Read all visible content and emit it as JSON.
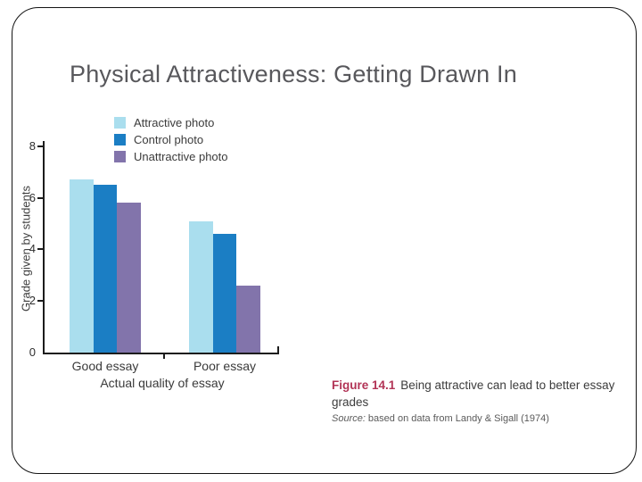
{
  "slide": {
    "title": "Physical Attractiveness: Getting Drawn In"
  },
  "chart_data": {
    "type": "bar",
    "title": "",
    "categories": [
      "Good essay",
      "Poor essay"
    ],
    "series": [
      {
        "name": "Attractive photo",
        "color": "#aadeee",
        "values": [
          6.7,
          5.1
        ]
      },
      {
        "name": "Control photo",
        "color": "#1b7ec4",
        "values": [
          6.5,
          4.6
        ]
      },
      {
        "name": "Unattractive photo",
        "color": "#8274ab",
        "values": [
          5.8,
          2.6
        ]
      }
    ],
    "xlabel": "Actual quality of essay",
    "ylabel": "Grade given by students",
    "ylim": [
      0,
      8
    ],
    "yticks": [
      0,
      2,
      4,
      6,
      8
    ],
    "legend_position": "top-left",
    "grid": false,
    "axis_color": "#1c1c1c"
  },
  "caption": {
    "figure_label": "Figure 14.1",
    "figure_text": "Being attractive can lead to better essay grades",
    "source_prefix": "Source:",
    "source_text": "based on data from Landy & Sigall (1974)",
    "accent_color": "#b23456"
  }
}
